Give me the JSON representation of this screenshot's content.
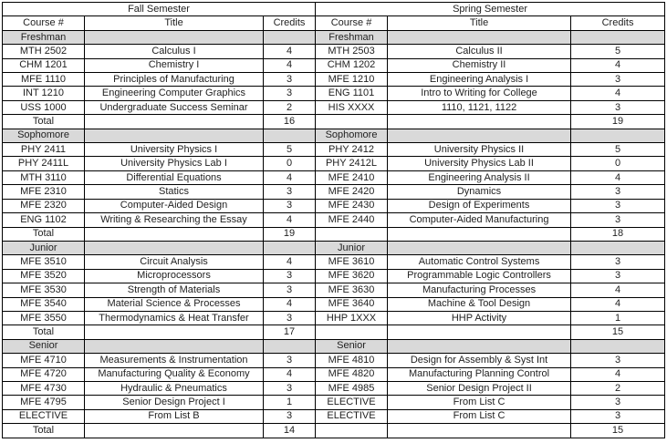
{
  "colors": {
    "section_row_bg": "#d9d9d9",
    "border": "#000000",
    "text": "#1f1f1f",
    "page_bg": "#ffffff"
  },
  "tables": [
    {
      "semester": "Fall Semester",
      "columns": [
        "Course #",
        "Title",
        "Credits"
      ],
      "sections": [
        {
          "name": "Freshman",
          "courses": [
            [
              "MTH 2502",
              "Calculus I",
              "4"
            ],
            [
              "CHM 1201",
              "Chemistry I",
              "4"
            ],
            [
              "MFE 1110",
              "Principles of Manufacturing",
              "3"
            ],
            [
              "INT 1210",
              "Engineering Computer Graphics",
              "3"
            ],
            [
              "USS 1000",
              "Undergraduate Success Seminar",
              "2"
            ]
          ],
          "total_label": "Total",
          "total_credits": "16"
        },
        {
          "name": "Sophomore",
          "courses": [
            [
              "PHY 2411",
              "University Physics I",
              "5"
            ],
            [
              "PHY 2411L",
              "University Physics Lab I",
              "0"
            ],
            [
              "MTH 3110",
              "Differential Equations",
              "4"
            ],
            [
              "MFE 2310",
              "Statics",
              "3"
            ],
            [
              "MFE 2320",
              "Computer-Aided Design",
              "3"
            ],
            [
              "ENG 1102",
              "Writing & Researching the Essay",
              "4"
            ]
          ],
          "total_label": "Total",
          "total_credits": "19"
        },
        {
          "name": "Junior",
          "courses": [
            [
              "MFE 3510",
              "Circuit Analysis",
              "4"
            ],
            [
              "MFE 3520",
              "Microprocessors",
              "3"
            ],
            [
              "MFE 3530",
              "Strength of Materials",
              "3"
            ],
            [
              "MFE 3540",
              "Material Science & Processes",
              "4"
            ],
            [
              "MFE 3550",
              "Thermodynamics & Heat Transfer",
              "3"
            ]
          ],
          "total_label": "Total",
          "total_credits": "17"
        },
        {
          "name": "Senior",
          "courses": [
            [
              "MFE 4710",
              "Measurements & Instrumentation",
              "3"
            ],
            [
              "MFE 4720",
              "Manufacturing Quality & Economy",
              "4"
            ],
            [
              "MFE 4730",
              "Hydraulic & Pneumatics",
              "3"
            ],
            [
              "MFE 4795",
              "Senior Design Project I",
              "1"
            ],
            [
              "ELECTIVE",
              "From List B",
              "3"
            ]
          ],
          "total_label": "Total",
          "total_credits": "14"
        }
      ]
    },
    {
      "semester": "Spring Semester",
      "columns": [
        "Course #",
        "Title",
        "Credits"
      ],
      "sections": [
        {
          "name": "Freshman",
          "courses": [
            [
              "MTH 2503",
              "Calculus II",
              "5"
            ],
            [
              "CHM 1202",
              "Chemistry II",
              "4"
            ],
            [
              "MFE 1210",
              "Engineering Analysis I",
              "3"
            ],
            [
              "ENG 1101",
              "Intro to Writing for College",
              "4"
            ],
            [
              "HIS XXXX",
              "1110, 1121, 1122",
              "3"
            ]
          ],
          "total_label": "",
          "total_credits": "19"
        },
        {
          "name": "Sophomore",
          "courses": [
            [
              "PHY 2412",
              "University Physics II",
              "5"
            ],
            [
              "PHY 2412L",
              "University Physics Lab II",
              "0"
            ],
            [
              "MFE 2410",
              "Engineering Analysis II",
              "4"
            ],
            [
              "MFE 2420",
              "Dynamics",
              "3"
            ],
            [
              "MFE 2430",
              "Design of Experiments",
              "3"
            ],
            [
              "MFE 2440",
              "Computer-Aided Manufacturing",
              "3"
            ]
          ],
          "total_label": "",
          "total_credits": "18"
        },
        {
          "name": "Junior",
          "courses": [
            [
              "MFE 3610",
              "Automatic Control Systems",
              "3"
            ],
            [
              "MFE 3620",
              "Programmable Logic Controllers",
              "3"
            ],
            [
              "MFE 3630",
              "Manufacturing Processes",
              "4"
            ],
            [
              "MFE 3640",
              "Machine & Tool Design",
              "4"
            ],
            [
              "HHP 1XXX",
              "HHP Activity",
              "1"
            ]
          ],
          "total_label": "",
          "total_credits": "15"
        },
        {
          "name": "Senior",
          "courses": [
            [
              "MFE 4810",
              "Design for Assembly & Syst Int",
              "3"
            ],
            [
              "MFE 4820",
              "Manufacturing Planning Control",
              "4"
            ],
            [
              "MFE 4985",
              "Senior Design Project II",
              "2"
            ],
            [
              "ELECTIVE",
              "From List C",
              "3"
            ],
            [
              "ELECTIVE",
              "From List C",
              "3"
            ]
          ],
          "total_label": "",
          "total_credits": "15"
        }
      ]
    }
  ]
}
